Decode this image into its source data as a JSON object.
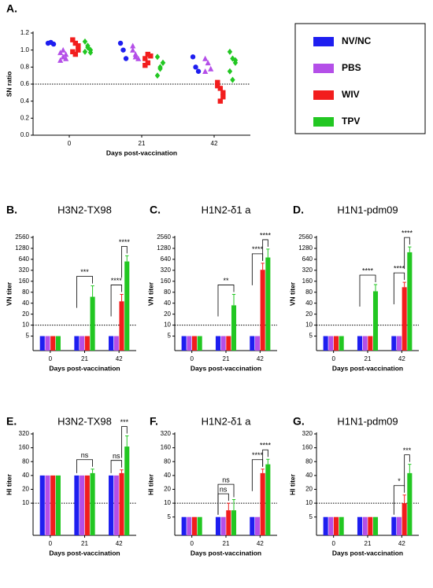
{
  "chart_data": [
    {
      "type": "scatter",
      "label": "A.",
      "ylabel": "SN ratio",
      "xlabel": "Days post-vaccination",
      "categories": [
        "0",
        "21",
        "42"
      ],
      "ylim": [
        0,
        1.2
      ],
      "yticks": [
        {
          "value": 0,
          "label": "0.0"
        },
        {
          "value": 0.2,
          "label": "0.2"
        },
        {
          "value": 0.4,
          "label": "0.4"
        },
        {
          "value": 0.6,
          "label": "0.6"
        },
        {
          "value": 0.8,
          "label": "0.8"
        },
        {
          "value": 1.0,
          "label": "1.0"
        },
        {
          "value": 1.2,
          "label": "1.2"
        }
      ],
      "threshold": 0.6,
      "legend": "right",
      "series": [
        {
          "name": "NV/NC",
          "color": "#1e1ef0",
          "marker": "circle",
          "values": [
            [
              1.08,
              1.09,
              1.07
            ],
            [
              1.08,
              1.0,
              0.9
            ],
            [
              0.92,
              0.8,
              0.75
            ]
          ]
        },
        {
          "name": "PBS",
          "color": "#b44fe8",
          "marker": "triangle",
          "values": [
            [
              0.88,
              0.92,
              0.95,
              0.97,
              1.0,
              0.9
            ],
            [
              1.05,
              0.95,
              0.9,
              1.0,
              0.92
            ],
            [
              0.9,
              0.85,
              0.78,
              0.75
            ]
          ]
        },
        {
          "name": "WIV",
          "color": "#f21d1d",
          "marker": "square",
          "values": [
            [
              1.12,
              1.08,
              1.0,
              0.98,
              0.95,
              1.05
            ],
            [
              0.9,
              0.85,
              0.93,
              0.82,
              0.95
            ],
            [
              0.62,
              0.55,
              0.5,
              0.58,
              0.4,
              0.45
            ]
          ]
        },
        {
          "name": "TPV",
          "color": "#22c722",
          "marker": "diamond",
          "values": [
            [
              1.1,
              1.05,
              1.0,
              0.98,
              1.03,
              0.97
            ],
            [
              0.92,
              0.8,
              0.85,
              0.7,
              0.78,
              0.85
            ],
            [
              0.98,
              0.9,
              0.85,
              0.75,
              0.65,
              0.88
            ]
          ]
        }
      ]
    },
    {
      "type": "bar",
      "label": "B.",
      "title": "H3N2-TX98",
      "ylabel": "VN titer",
      "xlabel": "Days post-vaccination",
      "categories": [
        "0",
        "21",
        "42"
      ],
      "log_scale": true,
      "ylim": [
        2,
        2560
      ],
      "yticks": [
        5,
        10,
        20,
        40,
        80,
        160,
        320,
        640,
        1280,
        2560
      ],
      "threshold": 10,
      "series": [
        {
          "color": "#1e1ef0",
          "values": [
            5,
            5,
            5
          ],
          "errors": [
            null,
            null,
            null
          ]
        },
        {
          "color": "#b44fe8",
          "values": [
            5,
            5,
            5
          ],
          "errors": [
            null,
            null,
            null
          ]
        },
        {
          "color": "#f21d1d",
          "values": [
            5,
            5,
            45
          ],
          "errors": [
            null,
            null,
            25
          ]
        },
        {
          "color": "#22c722",
          "values": [
            5,
            60,
            560
          ],
          "errors": [
            null,
            60,
            240
          ]
        }
      ],
      "annotations": [
        {
          "text": "***",
          "category": 1,
          "series": [
            0,
            3
          ]
        },
        {
          "text": "****",
          "category": 2,
          "series": [
            0,
            2
          ]
        },
        {
          "text": "****",
          "category": 2,
          "series": [
            2,
            3
          ]
        }
      ]
    },
    {
      "type": "bar",
      "label": "C.",
      "title": "H1N2-δ1 a",
      "ylabel": "VN titer",
      "xlabel": "Days post-vaccination",
      "categories": [
        "0",
        "21",
        "42"
      ],
      "log_scale": true,
      "ylim": [
        2,
        2560
      ],
      "yticks": [
        5,
        10,
        20,
        40,
        80,
        160,
        320,
        640,
        1280,
        2560
      ],
      "threshold": 10,
      "series": [
        {
          "color": "#1e1ef0",
          "values": [
            5,
            5,
            5
          ],
          "errors": [
            null,
            null,
            null
          ]
        },
        {
          "color": "#b44fe8",
          "values": [
            5,
            5,
            5
          ],
          "errors": [
            null,
            null,
            null
          ]
        },
        {
          "color": "#f21d1d",
          "values": [
            5,
            5,
            330
          ],
          "errors": [
            null,
            null,
            170
          ]
        },
        {
          "color": "#22c722",
          "values": [
            5,
            35,
            720
          ],
          "errors": [
            null,
            35,
            500
          ]
        }
      ],
      "annotations": [
        {
          "text": "**",
          "category": 1,
          "series": [
            0,
            3
          ]
        },
        {
          "text": "****",
          "category": 2,
          "series": [
            0,
            2
          ]
        },
        {
          "text": "****",
          "category": 2,
          "series": [
            2,
            3
          ]
        }
      ]
    },
    {
      "type": "bar",
      "label": "D.",
      "title": "H1N1-pdm09",
      "ylabel": "VN titer",
      "xlabel": "Days post-vaccination",
      "categories": [
        "0",
        "21",
        "42"
      ],
      "log_scale": true,
      "ylim": [
        2,
        2560
      ],
      "yticks": [
        5,
        10,
        20,
        40,
        80,
        160,
        320,
        640,
        1280,
        2560
      ],
      "threshold": 10,
      "series": [
        {
          "color": "#1e1ef0",
          "values": [
            5,
            5,
            5
          ],
          "errors": [
            null,
            null,
            null
          ]
        },
        {
          "color": "#b44fe8",
          "values": [
            5,
            5,
            5
          ],
          "errors": [
            null,
            null,
            null
          ]
        },
        {
          "color": "#f21d1d",
          "values": [
            5,
            5,
            110
          ],
          "errors": [
            null,
            null,
            40
          ]
        },
        {
          "color": "#22c722",
          "values": [
            5,
            85,
            1000
          ],
          "errors": [
            null,
            45,
            400
          ]
        }
      ],
      "annotations": [
        {
          "text": "****",
          "category": 1,
          "series": [
            0,
            3
          ]
        },
        {
          "text": "****",
          "category": 2,
          "series": [
            0,
            2
          ]
        },
        {
          "text": "****",
          "category": 2,
          "series": [
            2,
            3
          ]
        }
      ]
    },
    {
      "type": "bar",
      "label": "E.",
      "title": "H3N2-TX98",
      "ylabel": "HI titer",
      "xlabel": "Days post-vaccination",
      "categories": [
        "0",
        "21",
        "42"
      ],
      "log_scale": true,
      "ylim": [
        2,
        320
      ],
      "yticks": [
        10,
        20,
        40,
        80,
        160,
        320
      ],
      "threshold": 10,
      "series": [
        {
          "color": "#1e1ef0",
          "values": [
            40,
            40,
            40
          ],
          "errors": [
            null,
            null,
            null
          ]
        },
        {
          "color": "#b44fe8",
          "values": [
            40,
            40,
            40
          ],
          "errors": [
            null,
            null,
            null
          ]
        },
        {
          "color": "#f21d1d",
          "values": [
            40,
            40,
            45
          ],
          "errors": [
            null,
            null,
            8
          ]
        },
        {
          "color": "#22c722",
          "values": [
            40,
            45,
            170
          ],
          "errors": [
            null,
            10,
            120
          ]
        }
      ],
      "annotations": [
        {
          "text": "ns",
          "category": 1,
          "series": [
            0,
            3
          ]
        },
        {
          "text": "ns",
          "category": 2,
          "series": [
            0,
            2
          ]
        },
        {
          "text": "***",
          "category": 2,
          "series": [
            2,
            3
          ]
        }
      ]
    },
    {
      "type": "bar",
      "label": "F.",
      "title": "H1N2-δ1 a",
      "ylabel": "HI titer",
      "xlabel": "Days post-vaccination",
      "categories": [
        "0",
        "21",
        "42"
      ],
      "log_scale": true,
      "ylim": [
        2,
        320
      ],
      "yticks": [
        5,
        10,
        20,
        40,
        80,
        160,
        320
      ],
      "threshold": 10,
      "series": [
        {
          "color": "#1e1ef0",
          "values": [
            5,
            5,
            5
          ],
          "errors": [
            null,
            null,
            null
          ]
        },
        {
          "color": "#b44fe8",
          "values": [
            5,
            5,
            5
          ],
          "errors": [
            null,
            null,
            null
          ]
        },
        {
          "color": "#f21d1d",
          "values": [
            5,
            7,
            45
          ],
          "errors": [
            null,
            3,
            10
          ]
        },
        {
          "color": "#22c722",
          "values": [
            5,
            7,
            70
          ],
          "errors": [
            null,
            5,
            20
          ]
        }
      ],
      "annotations": [
        {
          "text": "ns",
          "category": 1,
          "series": [
            0,
            2
          ]
        },
        {
          "text": "ns",
          "category": 1,
          "series": [
            0,
            3
          ]
        },
        {
          "text": "****",
          "category": 2,
          "series": [
            0,
            2
          ]
        },
        {
          "text": "****",
          "category": 2,
          "series": [
            2,
            3
          ]
        }
      ]
    },
    {
      "type": "bar",
      "label": "G.",
      "title": "H1N1-pdm09",
      "ylabel": "HI titer",
      "xlabel": "Days post-vaccination",
      "categories": [
        "0",
        "21",
        "42"
      ],
      "log_scale": true,
      "ylim": [
        2,
        320
      ],
      "yticks": [
        5,
        10,
        20,
        40,
        80,
        160,
        320
      ],
      "threshold": 10,
      "series": [
        {
          "color": "#1e1ef0",
          "values": [
            5,
            5,
            5
          ],
          "errors": [
            null,
            null,
            null
          ]
        },
        {
          "color": "#b44fe8",
          "values": [
            5,
            5,
            5
          ],
          "errors": [
            null,
            null,
            null
          ]
        },
        {
          "color": "#f21d1d",
          "values": [
            5,
            5,
            10
          ],
          "errors": [
            null,
            null,
            5
          ]
        },
        {
          "color": "#22c722",
          "values": [
            5,
            5,
            45
          ],
          "errors": [
            null,
            null,
            25
          ]
        }
      ],
      "annotations": [
        {
          "text": "*",
          "category": 2,
          "series": [
            0,
            2
          ]
        },
        {
          "text": "***",
          "category": 2,
          "series": [
            2,
            3
          ]
        }
      ]
    }
  ]
}
